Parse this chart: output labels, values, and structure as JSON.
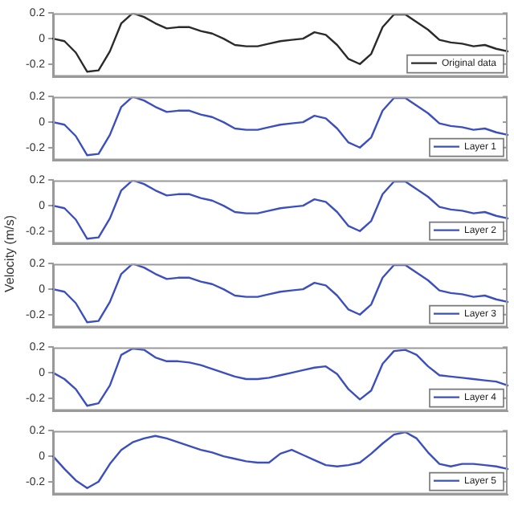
{
  "chart_data": [
    {
      "type": "line",
      "categories": [
        null,
        null,
        null,
        null,
        null,
        null,
        null,
        null,
        null,
        null,
        null,
        null,
        null,
        null,
        null,
        null,
        null,
        null,
        null,
        null,
        null,
        null,
        null,
        null,
        null,
        null,
        null,
        null,
        null,
        null,
        null,
        null,
        null,
        null,
        null,
        null,
        null,
        null,
        null,
        null,
        null
      ],
      "series": [
        {
          "name": "Original data",
          "color": "#2b2b2b",
          "values": [
            0,
            -0.02,
            -0.11,
            -0.26,
            -0.25,
            -0.1,
            0.12,
            0.2,
            0.17,
            0.12,
            0.08,
            0.09,
            0.09,
            0.06,
            0.04,
            0,
            -0.05,
            -0.06,
            -0.06,
            -0.04,
            -0.02,
            -0.01,
            0,
            0.05,
            0.03,
            -0.05,
            -0.16,
            -0.2,
            -0.12,
            0.09,
            0.19,
            0.19,
            0.13,
            0.07,
            -0.01,
            -0.03,
            -0.04,
            -0.06,
            -0.05,
            -0.08,
            -0.1
          ]
        }
      ],
      "ylim": [
        -0.3,
        0.2
      ],
      "yticks": [
        -0.2,
        0,
        0.2
      ],
      "legend": "bottom right",
      "tick_labels": "y",
      "marker": "none",
      "line_style": "solid"
    },
    {
      "type": "line",
      "categories": [
        null,
        null,
        null,
        null,
        null,
        null,
        null,
        null,
        null,
        null,
        null,
        null,
        null,
        null,
        null,
        null,
        null,
        null,
        null,
        null,
        null,
        null,
        null,
        null,
        null,
        null,
        null,
        null,
        null,
        null,
        null,
        null,
        null,
        null,
        null,
        null,
        null,
        null,
        null,
        null,
        null
      ],
      "series": [
        {
          "name": "Layer 1",
          "color": "#3c4fbf",
          "values": [
            0,
            -0.02,
            -0.11,
            -0.26,
            -0.25,
            -0.1,
            0.12,
            0.2,
            0.17,
            0.12,
            0.08,
            0.09,
            0.09,
            0.06,
            0.04,
            0,
            -0.05,
            -0.06,
            -0.06,
            -0.04,
            -0.02,
            -0.01,
            0,
            0.05,
            0.03,
            -0.05,
            -0.16,
            -0.2,
            -0.12,
            0.09,
            0.19,
            0.19,
            0.13,
            0.07,
            -0.01,
            -0.03,
            -0.04,
            -0.06,
            -0.05,
            -0.08,
            -0.1
          ]
        }
      ],
      "ylim": [
        -0.3,
        0.2
      ],
      "yticks": [
        -0.2,
        0,
        0.2
      ],
      "legend": "bottom right",
      "tick_labels": "y",
      "marker": "none",
      "line_style": "solid"
    },
    {
      "type": "line",
      "ylabel": "Velocity (m/s)",
      "categories": [
        null,
        null,
        null,
        null,
        null,
        null,
        null,
        null,
        null,
        null,
        null,
        null,
        null,
        null,
        null,
        null,
        null,
        null,
        null,
        null,
        null,
        null,
        null,
        null,
        null,
        null,
        null,
        null,
        null,
        null,
        null,
        null,
        null,
        null,
        null,
        null,
        null,
        null,
        null,
        null,
        null
      ],
      "series": [
        {
          "name": "Layer 2",
          "color": "#3c4fbf",
          "values": [
            0,
            -0.02,
            -0.11,
            -0.26,
            -0.25,
            -0.1,
            0.12,
            0.2,
            0.17,
            0.12,
            0.08,
            0.09,
            0.09,
            0.06,
            0.04,
            0,
            -0.05,
            -0.06,
            -0.06,
            -0.04,
            -0.02,
            -0.01,
            0,
            0.05,
            0.03,
            -0.05,
            -0.16,
            -0.2,
            -0.12,
            0.09,
            0.19,
            0.19,
            0.13,
            0.07,
            -0.01,
            -0.03,
            -0.04,
            -0.06,
            -0.05,
            -0.08,
            -0.1
          ]
        }
      ],
      "ylim": [
        -0.3,
        0.2
      ],
      "yticks": [
        -0.2,
        0,
        0.2
      ],
      "legend": "bottom right",
      "tick_labels": "y",
      "marker": "none",
      "line_style": "solid"
    },
    {
      "type": "line",
      "categories": [
        null,
        null,
        null,
        null,
        null,
        null,
        null,
        null,
        null,
        null,
        null,
        null,
        null,
        null,
        null,
        null,
        null,
        null,
        null,
        null,
        null,
        null,
        null,
        null,
        null,
        null,
        null,
        null,
        null,
        null,
        null,
        null,
        null,
        null,
        null,
        null,
        null,
        null,
        null,
        null,
        null
      ],
      "series": [
        {
          "name": "Layer 3",
          "color": "#3c4fbf",
          "values": [
            0,
            -0.02,
            -0.11,
            -0.26,
            -0.25,
            -0.1,
            0.12,
            0.2,
            0.17,
            0.12,
            0.08,
            0.09,
            0.09,
            0.06,
            0.04,
            0,
            -0.05,
            -0.06,
            -0.06,
            -0.04,
            -0.02,
            -0.01,
            0,
            0.05,
            0.03,
            -0.05,
            -0.16,
            -0.2,
            -0.12,
            0.09,
            0.19,
            0.19,
            0.13,
            0.07,
            -0.01,
            -0.03,
            -0.04,
            -0.06,
            -0.05,
            -0.08,
            -0.1
          ]
        }
      ],
      "ylim": [
        -0.3,
        0.2
      ],
      "yticks": [
        -0.2,
        0,
        0.2
      ],
      "legend": "bottom right",
      "tick_labels": "y",
      "marker": "none",
      "line_style": "solid"
    },
    {
      "type": "line",
      "categories": [
        null,
        null,
        null,
        null,
        null,
        null,
        null,
        null,
        null,
        null,
        null,
        null,
        null,
        null,
        null,
        null,
        null,
        null,
        null,
        null,
        null,
        null,
        null,
        null,
        null,
        null,
        null,
        null,
        null,
        null,
        null,
        null,
        null,
        null,
        null,
        null,
        null,
        null,
        null,
        null,
        null
      ],
      "series": [
        {
          "name": "Layer 4",
          "color": "#3c4fbf",
          "values": [
            0,
            -0.05,
            -0.13,
            -0.26,
            -0.24,
            -0.1,
            0.14,
            0.19,
            0.18,
            0.12,
            0.09,
            0.09,
            0.08,
            0.06,
            0.03,
            0,
            -0.03,
            -0.05,
            -0.05,
            -0.04,
            -0.02,
            0,
            0.02,
            0.04,
            0.05,
            -0.01,
            -0.13,
            -0.21,
            -0.14,
            0.07,
            0.17,
            0.18,
            0.14,
            0.05,
            -0.02,
            -0.03,
            -0.04,
            -0.05,
            -0.06,
            -0.07,
            -0.1
          ]
        }
      ],
      "ylim": [
        -0.3,
        0.2
      ],
      "yticks": [
        -0.2,
        0,
        0.2
      ],
      "legend": "bottom right",
      "tick_labels": "y",
      "marker": "none",
      "line_style": "solid"
    },
    {
      "type": "line",
      "categories": [
        null,
        null,
        null,
        null,
        null,
        null,
        null,
        null,
        null,
        null,
        null,
        null,
        null,
        null,
        null,
        null,
        null,
        null,
        null,
        null,
        null,
        null,
        null,
        null,
        null,
        null,
        null,
        null,
        null,
        null,
        null,
        null,
        null,
        null,
        null,
        null,
        null,
        null,
        null,
        null,
        null
      ],
      "series": [
        {
          "name": "Layer 5",
          "color": "#3c4fbf",
          "values": [
            0,
            -0.1,
            -0.19,
            -0.25,
            -0.2,
            -0.06,
            0.05,
            0.11,
            0.14,
            0.16,
            0.14,
            0.11,
            0.08,
            0.05,
            0.03,
            0,
            -0.02,
            -0.04,
            -0.05,
            -0.05,
            0.02,
            0.05,
            0.01,
            -0.03,
            -0.07,
            -0.08,
            -0.07,
            -0.05,
            0.02,
            0.1,
            0.17,
            0.19,
            0.14,
            0.03,
            -0.06,
            -0.08,
            -0.06,
            -0.06,
            -0.07,
            -0.08,
            -0.1
          ]
        }
      ],
      "ylim": [
        -0.3,
        0.2
      ],
      "yticks": [
        -0.2,
        0,
        0.2
      ],
      "legend": "bottom right",
      "tick_labels": "y",
      "marker": "none",
      "line_style": "solid"
    }
  ]
}
